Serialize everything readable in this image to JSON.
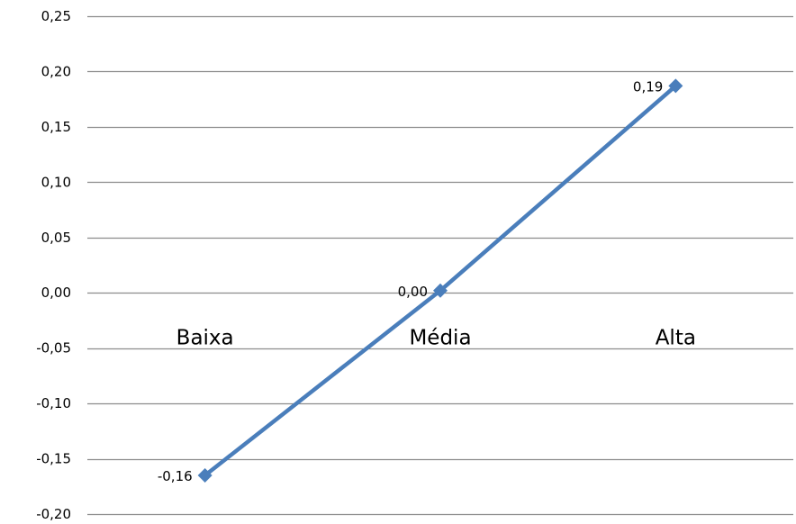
{
  "chart_data": {
    "type": "line",
    "categories": [
      "Baixa",
      "Média",
      "Alta"
    ],
    "series": [
      {
        "values": [
          -0.165,
          0.002,
          0.187
        ],
        "data_labels": [
          "-0,16",
          "0,00",
          "0,19"
        ],
        "color": "#4a7ebb",
        "marker": "diamond"
      }
    ],
    "ylim": [
      -0.2,
      0.25
    ],
    "yticks": [
      0.25,
      0.2,
      0.15,
      0.1,
      0.05,
      0.0,
      -0.05,
      -0.1,
      -0.15,
      -0.2
    ],
    "ytick_labels": [
      "0,25",
      "0,20",
      "0,15",
      "0,10",
      "0,05",
      "0,00",
      "-0,05",
      "-0,10",
      "-0,15",
      "-0,20"
    ],
    "grid": true,
    "gridline_color": "#8c8c8c",
    "legend": "none"
  }
}
